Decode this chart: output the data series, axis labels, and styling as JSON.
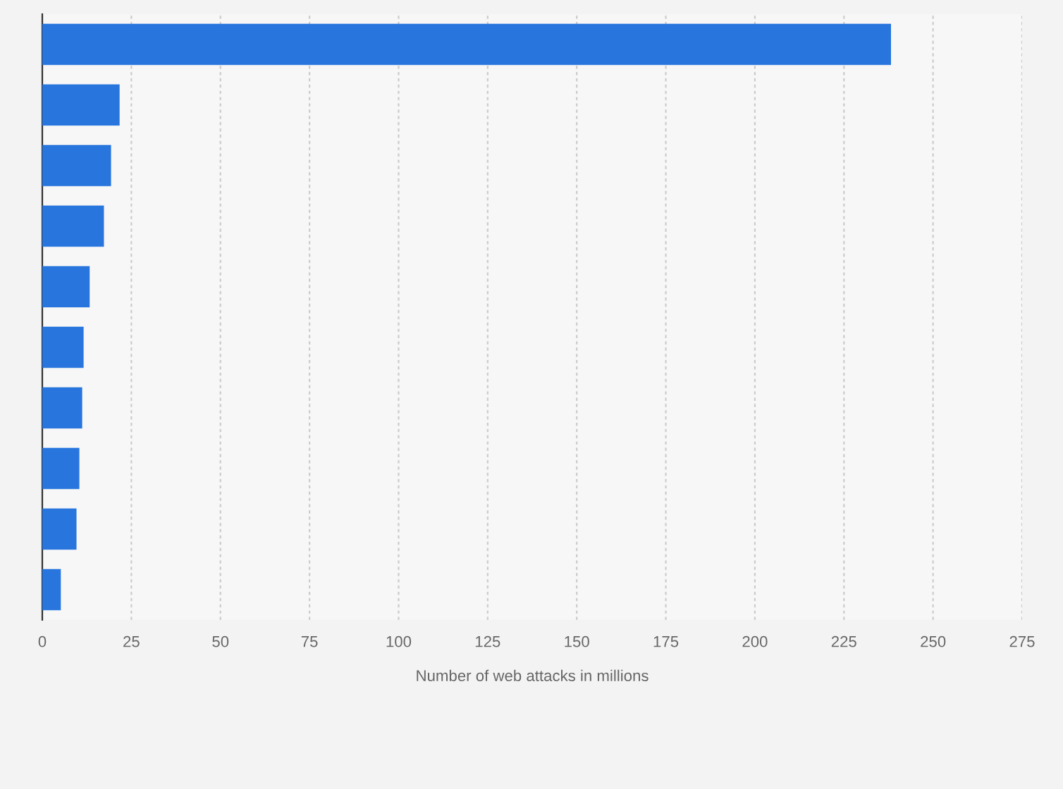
{
  "chart_data": {
    "type": "bar",
    "orientation": "horizontal",
    "xlabel": "Number of web attacks in millions",
    "categories": [
      null,
      null,
      null,
      null,
      null,
      null,
      null,
      null,
      null,
      null
    ],
    "values": [
      238.2,
      21.7,
      19.3,
      17.3,
      13.3,
      11.6,
      11.2,
      10.4,
      9.6,
      5.2
    ],
    "color": "#2876dd",
    "xlim": [
      0,
      275
    ],
    "xticks": [
      0,
      25,
      50,
      75,
      100,
      125,
      150,
      175,
      200,
      225,
      250,
      275
    ],
    "grid": "x",
    "tick_labels": "x"
  }
}
